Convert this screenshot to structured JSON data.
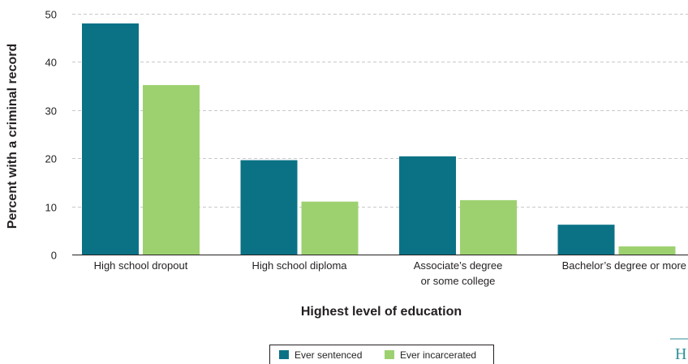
{
  "chart_data": {
    "type": "bar",
    "categories": [
      [
        "High school dropout"
      ],
      [
        "High school diploma"
      ],
      [
        "Associate’s degree",
        "or some college"
      ],
      [
        "Bachelor’s degree or more"
      ]
    ],
    "series": [
      {
        "name": "Ever sentenced",
        "values": [
          48,
          19.6,
          20.4,
          6.2
        ],
        "color": "#0b7286"
      },
      {
        "name": "Ever incarcerated",
        "values": [
          35.2,
          11,
          11.3,
          1.7
        ],
        "color": "#9dd170"
      }
    ],
    "xlabel": "Highest level of education",
    "ylabel": "Percent with a criminal record",
    "ylim": [
      0,
      50
    ],
    "yticks": [
      0,
      10,
      20,
      30,
      40,
      50
    ],
    "grid": true,
    "legend_position": "bottom-center"
  }
}
